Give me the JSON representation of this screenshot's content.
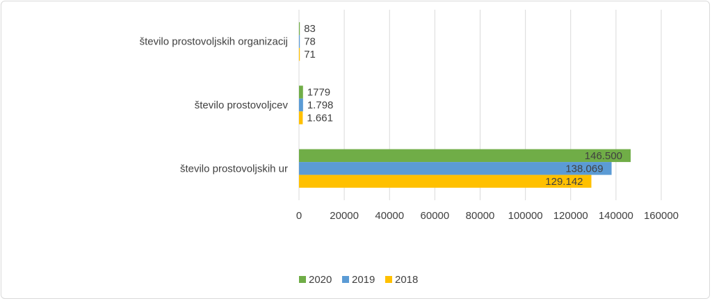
{
  "chart_data": {
    "type": "bar",
    "orientation": "horizontal",
    "title": "",
    "xlabel": "",
    "ylabel": "",
    "xlim": [
      0,
      160000
    ],
    "x_ticks": [
      "0",
      "20000",
      "40000",
      "60000",
      "80000",
      "100000",
      "120000",
      "140000",
      "160000"
    ],
    "grid": true,
    "legend_position": "bottom",
    "categories": [
      "število prostovoljskih organizacij",
      "število prostovoljcev",
      "število prostovoljskih ur"
    ],
    "series": [
      {
        "name": "2020",
        "color": "#70ad47",
        "values": [
          83,
          1779,
          146500
        ],
        "labels": [
          "83",
          "1779",
          "146.500"
        ]
      },
      {
        "name": "2019",
        "color": "#5b9bd5",
        "values": [
          78,
          1798,
          138069
        ],
        "labels": [
          "78",
          "1.798",
          "138.069"
        ]
      },
      {
        "name": "2018",
        "color": "#ffc000",
        "values": [
          71,
          1661,
          129142
        ],
        "labels": [
          "71",
          "1.661",
          "129.142"
        ]
      }
    ]
  }
}
